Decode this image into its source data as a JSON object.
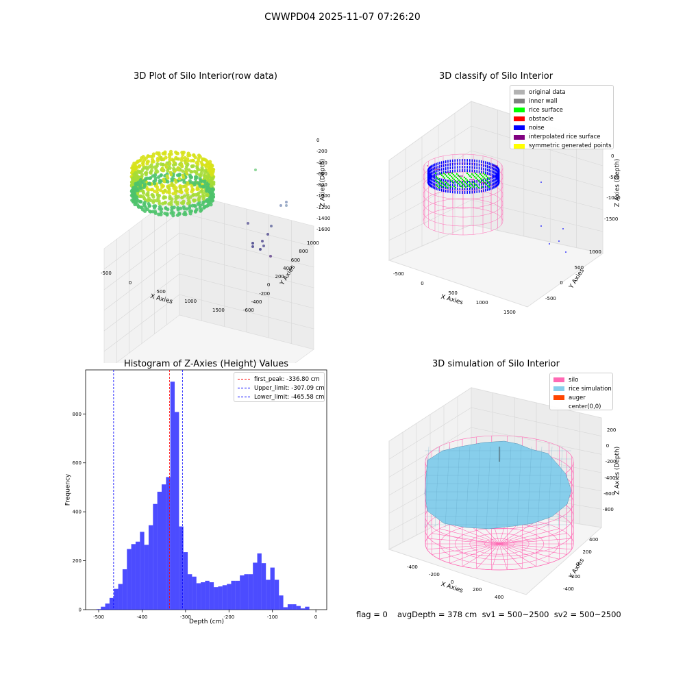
{
  "figure": {
    "title": "CWWPD04 2025-11-07 07:26:20"
  },
  "panel_raw": {
    "title": "3D Plot of Silo Interior(row data)",
    "xlabel": "X Axies",
    "ylabel": "Y Axies",
    "zlabel": "Z Axies (Depth)",
    "x_ticks": [
      "-500",
      "0",
      "500",
      "1000",
      "1500"
    ],
    "y_ticks": [
      "1000",
      "800",
      "600",
      "400",
      "200",
      "0",
      "-200",
      "-400",
      "-600"
    ],
    "z_ticks": [
      "0",
      "-200",
      "-400",
      "-600",
      "-800",
      "-1000",
      "-1200",
      "-1400",
      "-1600"
    ]
  },
  "panel_classify": {
    "title": "3D classify of Silo Interior",
    "xlabel": "X Axies",
    "ylabel": "Y Axies",
    "zlabel": "Z Axies (Depth)",
    "x_ticks": [
      "-500",
      "0",
      "500",
      "1000",
      "1500"
    ],
    "y_ticks": [
      "1000",
      "500",
      "0",
      "-500"
    ],
    "z_ticks": [
      "0",
      "-500",
      "-1000",
      "-1500"
    ],
    "legend": [
      {
        "label": "original data",
        "color": "#b3b3b3"
      },
      {
        "label": "inner wall",
        "color": "#808080"
      },
      {
        "label": "rice surface",
        "color": "#00ff00"
      },
      {
        "label": "obstacle",
        "color": "#ff0000"
      },
      {
        "label": "noise",
        "color": "#0000ff"
      },
      {
        "label": "interpolated rice surface",
        "color": "#800080"
      },
      {
        "label": "symmetric generated points",
        "color": "#ffff00"
      }
    ]
  },
  "panel_sim": {
    "title": "3D simulation of Silo Interior",
    "xlabel": "X Axies",
    "ylabel": "Y Axies",
    "zlabel": "Z Axies (Depth)",
    "x_ticks": [
      "-400",
      "-200",
      "0",
      "200",
      "400"
    ],
    "y_ticks": [
      "400",
      "200",
      "0",
      "-200",
      "-400"
    ],
    "z_ticks": [
      "200",
      "0",
      "-200",
      "-400",
      "-600",
      "-800"
    ],
    "legend": [
      {
        "label": "silo",
        "color": "#ff69b4"
      },
      {
        "label": "rice simulation",
        "color": "#87ceeb"
      },
      {
        "label": "auger",
        "color": "#ff4500"
      },
      {
        "label": "center(0,0)",
        "color": ""
      }
    ]
  },
  "footer": {
    "flag": "flag = 0",
    "stats": "avgDepth = 378 cm  sv1 = 500~2500  sv2 = 500~2500"
  },
  "chart_data": [
    {
      "type": "bar",
      "title": "Histogram of Z-Axies (Height) Values",
      "xlabel": "Depth (cm)",
      "ylabel": "Frequency",
      "xlim": [
        -530,
        25
      ],
      "ylim": [
        0,
        980
      ],
      "x_ticks": [
        -500,
        -400,
        -300,
        -200,
        -100,
        0
      ],
      "y_ticks": [
        0,
        200,
        400,
        600,
        800
      ],
      "bin_width": 10,
      "bin_start": -505,
      "values": [
        2,
        12,
        25,
        48,
        85,
        105,
        165,
        248,
        268,
        278,
        318,
        265,
        345,
        432,
        482,
        512,
        542,
        932,
        808,
        340,
        235,
        145,
        135,
        108,
        112,
        118,
        112,
        92,
        95,
        100,
        105,
        118,
        118,
        140,
        145,
        145,
        192,
        230,
        190,
        122,
        172,
        122,
        58,
        10,
        22,
        22,
        15,
        5,
        12
      ],
      "bar_color": "#0000ff",
      "bar_opacity": 0.7,
      "vlines": [
        {
          "label": "first_peak: -336.80 cm",
          "x": -336.8,
          "color": "#ff0000"
        },
        {
          "label": "Upper_limit: -307.09 cm",
          "x": -307.09,
          "color": "#0000ff"
        },
        {
          "label": "Lower_limit: -465.58 cm",
          "x": -465.58,
          "color": "#0000ff"
        }
      ],
      "legend_position": "top-right",
      "grid": false
    }
  ]
}
